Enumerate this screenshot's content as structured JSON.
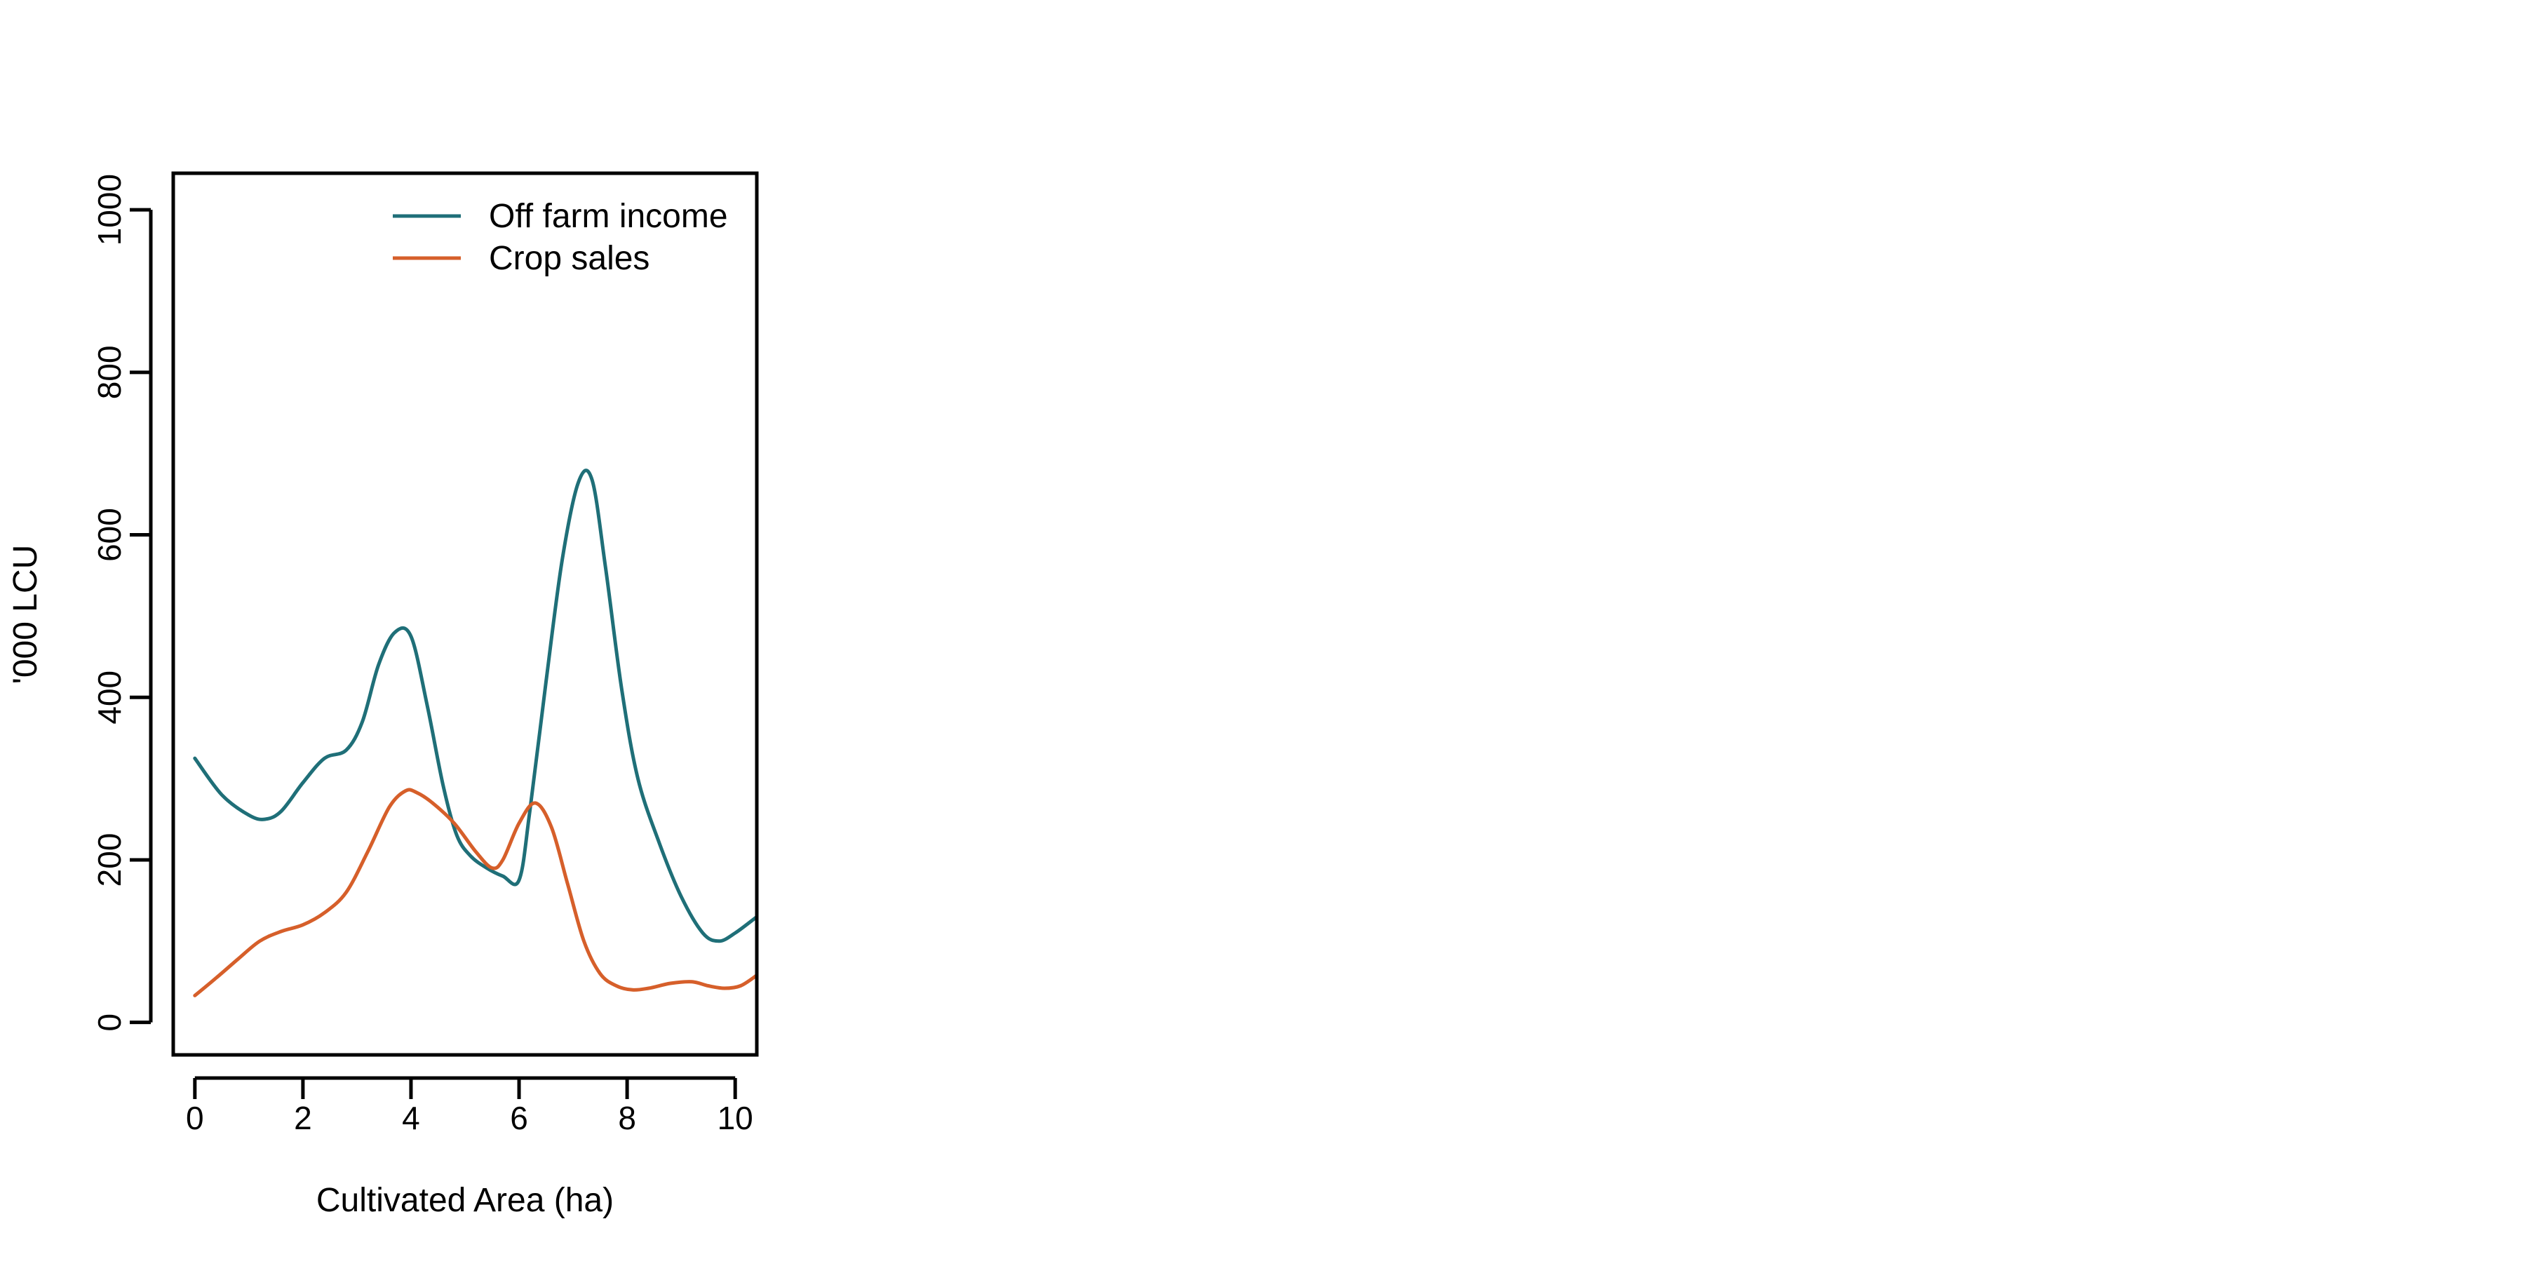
{
  "chart_data": {
    "type": "line",
    "title": "",
    "xlabel": "Cultivated Area (ha)",
    "ylabel": "'000 LCU",
    "xlim": [
      -0.4,
      10.4
    ],
    "ylim": [
      -40,
      1045
    ],
    "x_ticks": [
      0,
      2,
      4,
      6,
      8,
      10
    ],
    "y_ticks": [
      0,
      200,
      400,
      600,
      800,
      1000
    ],
    "grid": false,
    "legend_position": "top-right",
    "series": [
      {
        "name": "Off farm income",
        "color": "#1f6f78",
        "x": [
          0,
          0.5,
          1.0,
          1.3,
          1.6,
          2.0,
          2.4,
          2.8,
          3.1,
          3.4,
          3.7,
          4.0,
          4.3,
          4.6,
          4.85,
          5.1,
          5.4,
          5.7,
          6.0,
          6.2,
          6.5,
          6.8,
          7.1,
          7.35,
          7.6,
          7.9,
          8.2,
          8.6,
          9.0,
          9.4,
          9.7,
          10.0,
          10.4
        ],
        "y": [
          325,
          280,
          255,
          250,
          260,
          295,
          325,
          335,
          370,
          440,
          480,
          475,
          390,
          290,
          230,
          205,
          190,
          180,
          175,
          260,
          420,
          570,
          665,
          668,
          560,
          410,
          300,
          220,
          155,
          110,
          100,
          110,
          130
        ]
      },
      {
        "name": "Crop sales",
        "color": "#d65f2a",
        "x": [
          0,
          0.4,
          0.8,
          1.2,
          1.6,
          2.0,
          2.4,
          2.8,
          3.2,
          3.6,
          3.9,
          4.1,
          4.4,
          4.8,
          5.2,
          5.5,
          5.7,
          6.0,
          6.3,
          6.6,
          6.9,
          7.2,
          7.5,
          7.8,
          8.1,
          8.4,
          8.8,
          9.2,
          9.5,
          9.8,
          10.1,
          10.4
        ],
        "y": [
          33,
          55,
          78,
          100,
          112,
          120,
          135,
          160,
          210,
          265,
          285,
          283,
          270,
          245,
          210,
          190,
          200,
          245,
          270,
          240,
          170,
          100,
          60,
          45,
          40,
          42,
          48,
          50,
          45,
          42,
          45,
          58
        ]
      }
    ]
  }
}
